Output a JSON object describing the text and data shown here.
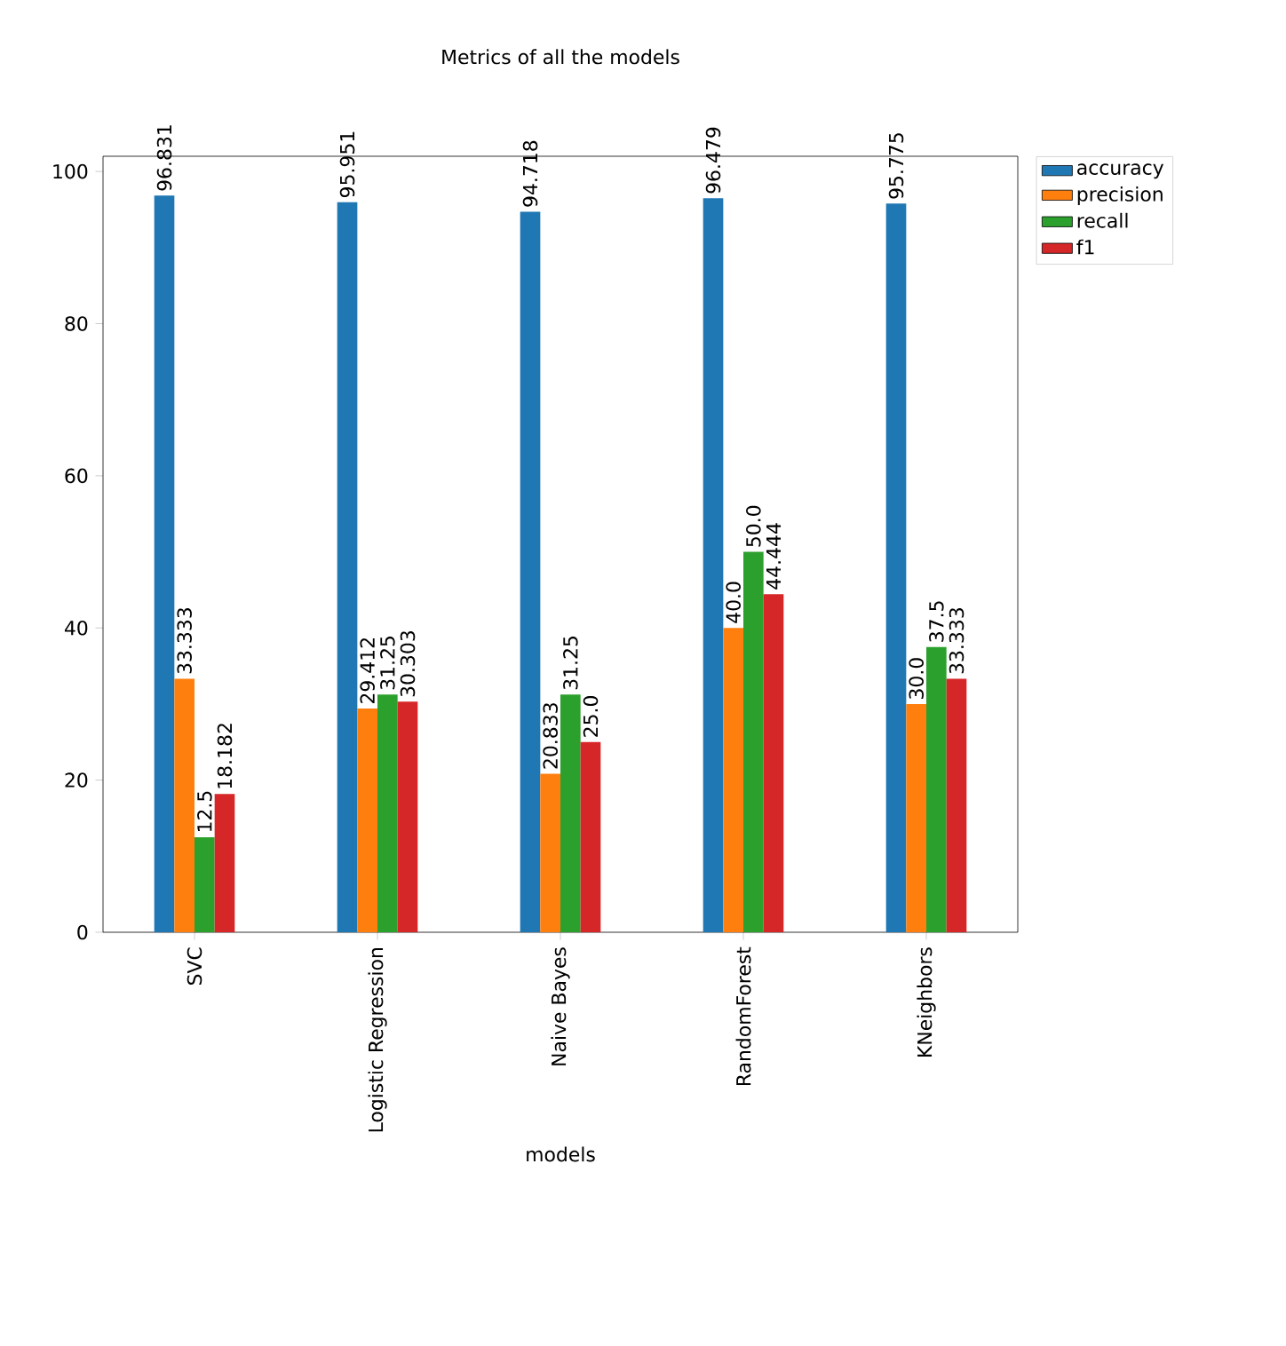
{
  "chart_data": {
    "type": "bar",
    "title": "Metrics of all the models",
    "xlabel": "models",
    "categories": [
      "SVC",
      "Logistic Regression",
      "Naive Bayes",
      "RandomForest",
      "KNeighbors"
    ],
    "series": [
      {
        "name": "accuracy",
        "color": "#1f77b4",
        "values": [
          96.831,
          95.951,
          94.718,
          96.479,
          95.775
        ],
        "value_labels": [
          "96.831",
          "95.951",
          "94.718",
          "96.479",
          "95.775"
        ]
      },
      {
        "name": "precision",
        "color": "#ff7f0e",
        "values": [
          33.333,
          29.412,
          20.833,
          40.0,
          30.0
        ],
        "value_labels": [
          "33.333",
          "29.412",
          "20.833",
          "40.0",
          "30.0"
        ]
      },
      {
        "name": "recall",
        "color": "#2ca02c",
        "values": [
          12.5,
          31.25,
          31.25,
          50.0,
          37.5
        ],
        "value_labels": [
          "12.5",
          "31.25",
          "31.25",
          "50.0",
          "37.5"
        ]
      },
      {
        "name": "f1",
        "color": "#d62728",
        "values": [
          18.182,
          30.303,
          25.0,
          44.444,
          33.333
        ],
        "value_labels": [
          "18.182",
          "30.303",
          "25.0",
          "44.444",
          "33.333"
        ]
      }
    ],
    "ylim": [
      0,
      102
    ],
    "yticks": [
      0,
      20,
      40,
      60,
      80,
      100
    ],
    "legend": "right",
    "grid": false
  }
}
